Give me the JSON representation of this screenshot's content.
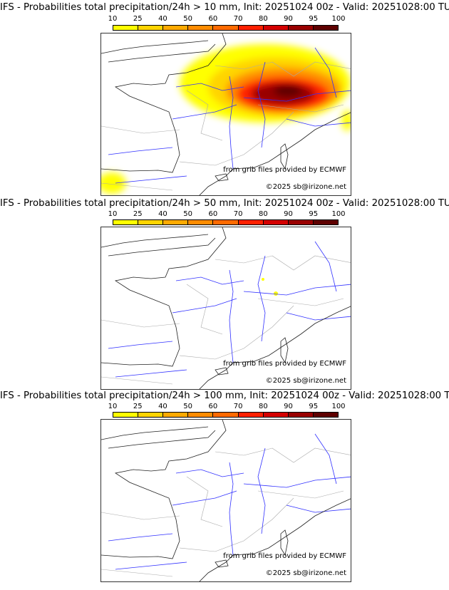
{
  "colorbar": {
    "ticks": [
      "10",
      "25",
      "40",
      "50",
      "60",
      "70",
      "80",
      "90",
      "95",
      "100"
    ],
    "colors": [
      "#ffff00",
      "#ffd400",
      "#ffaa00",
      "#ff8c00",
      "#ff6a00",
      "#ff2000",
      "#d40000",
      "#990000",
      "#5e0000"
    ]
  },
  "panels": [
    {
      "title": "IFS - Probabilities total precipitation/24h > 10 mm, Init: 20251024 00z - Valid: 20251028:00 TU",
      "threshold_mm": 10
    },
    {
      "title": "IFS - Probabilities total precipitation/24h > 50 mm, Init: 20251024 00z - Valid: 20251028:00 TU",
      "threshold_mm": 50
    },
    {
      "title": "IFS - Probabilities total precipitation/24h > 100 mm, Init: 20251024 00z - Valid: 20251028:00 TU",
      "threshold_mm": 100
    }
  ],
  "credits": {
    "source": "from grib files provided by ECMWF",
    "copyright": "©2025 sb@irizone.net"
  }
}
